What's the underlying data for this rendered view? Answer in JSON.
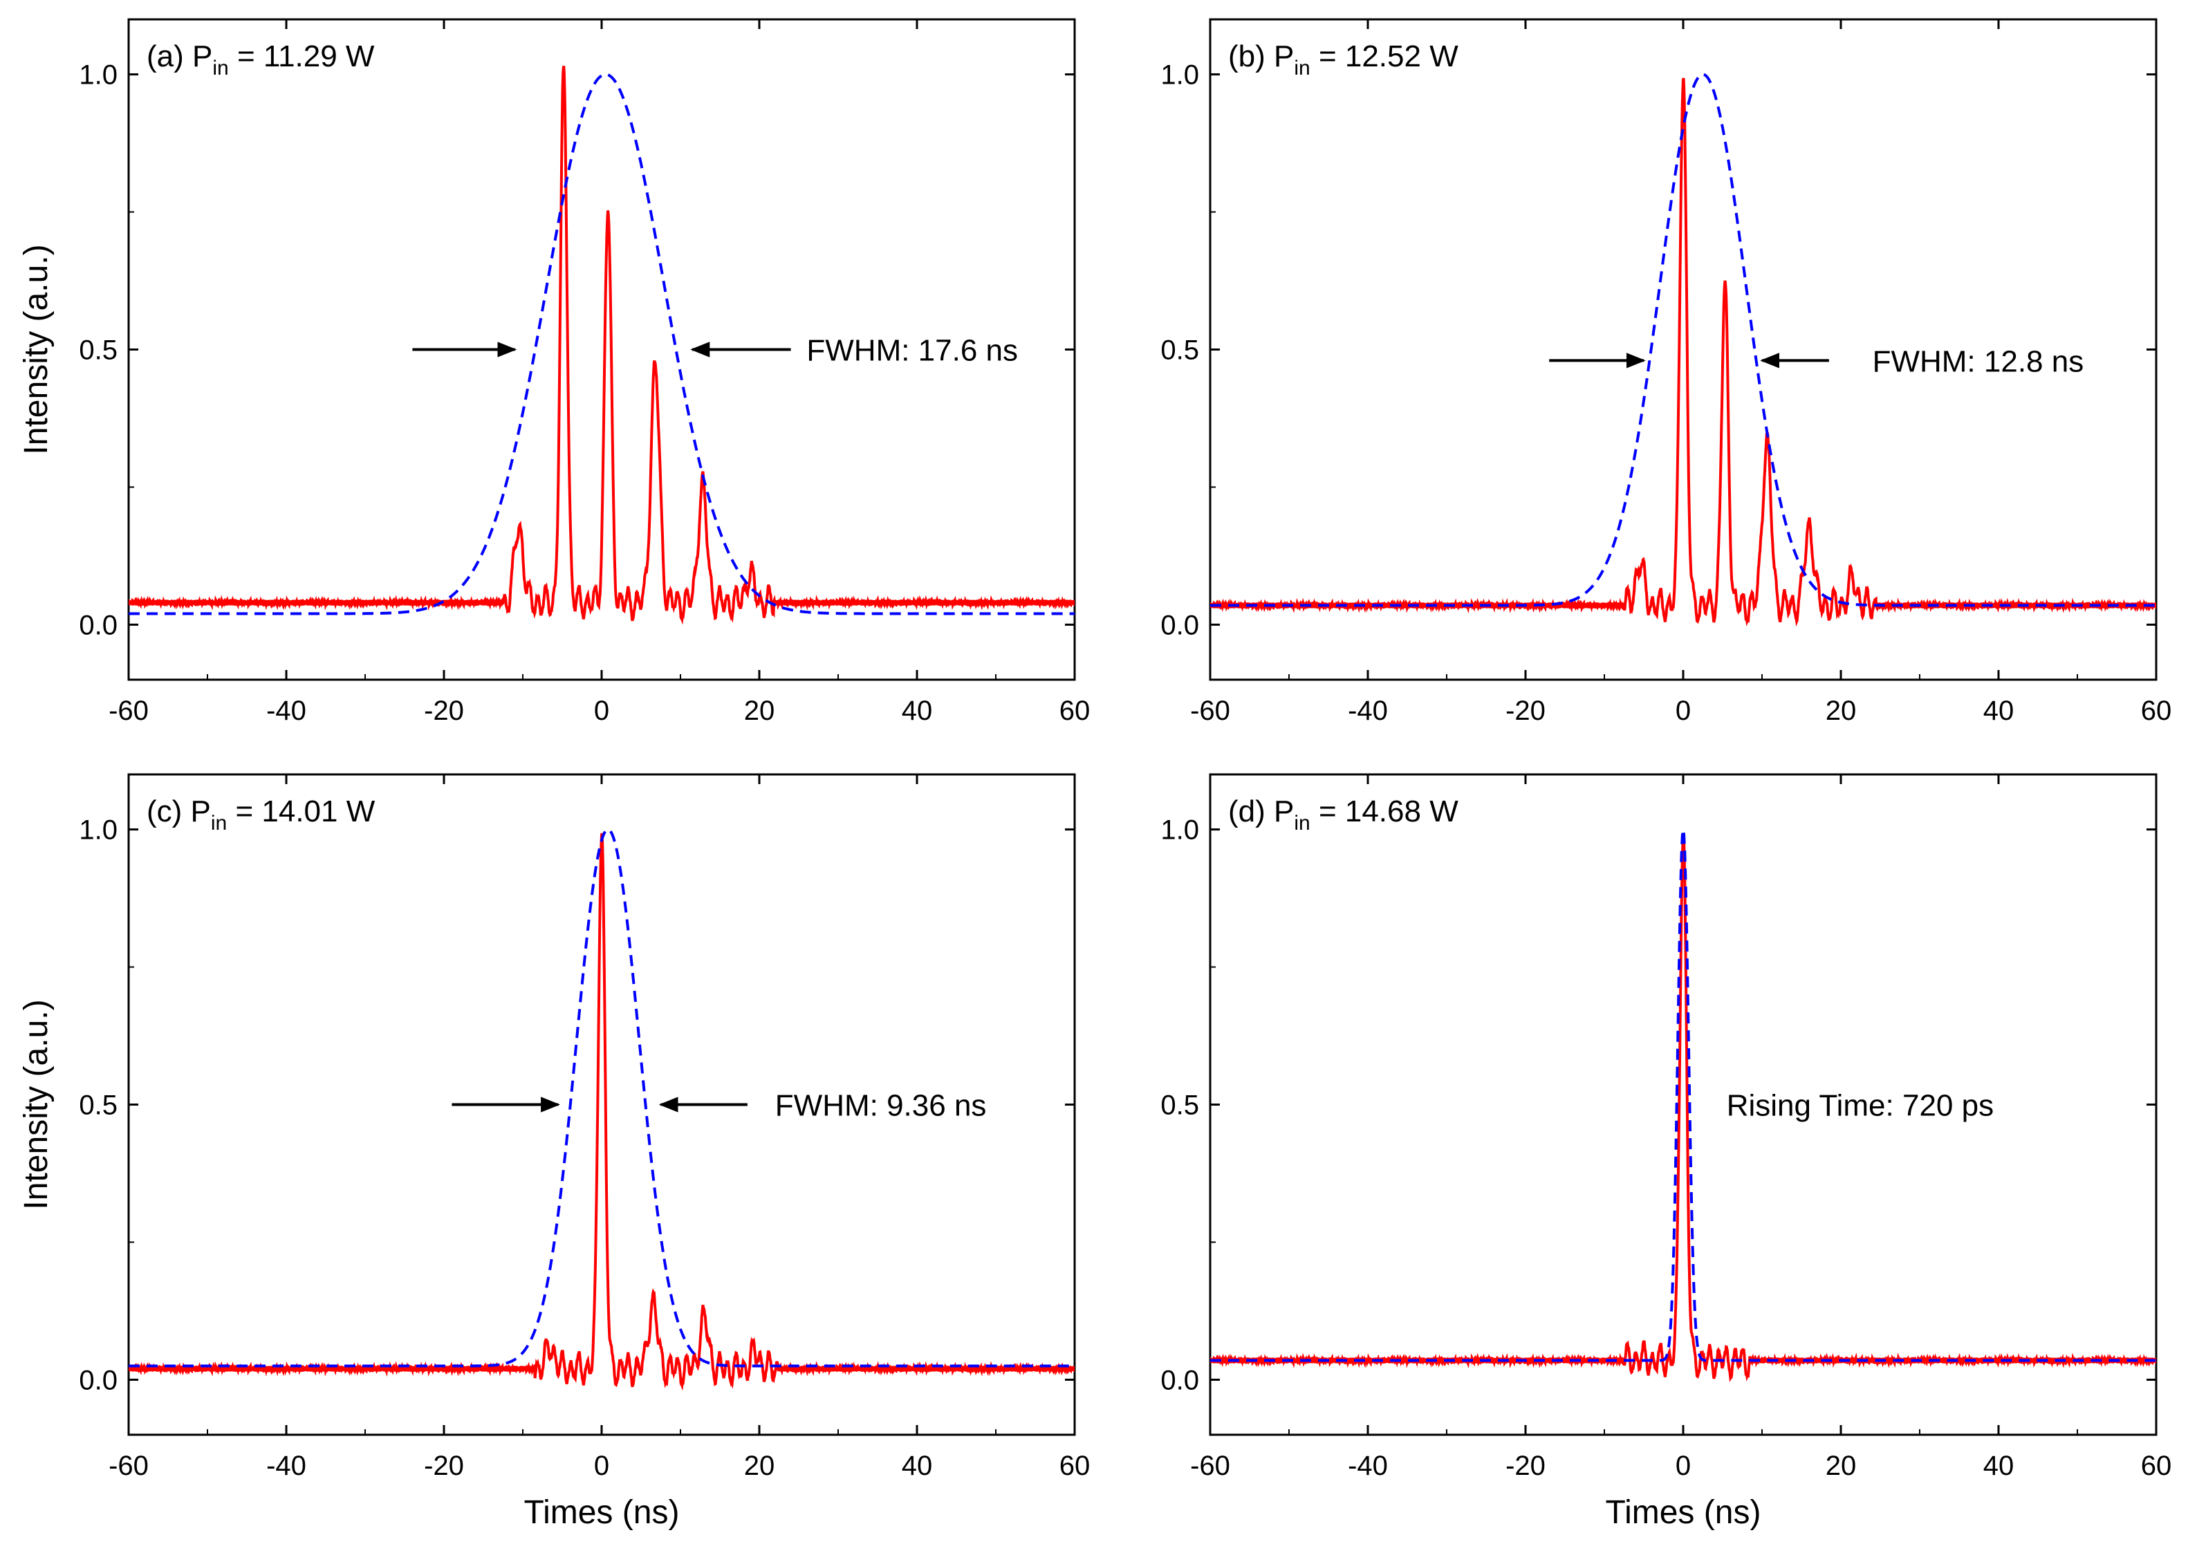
{
  "figure_title": "",
  "colors": {
    "measured": "#ff0000",
    "fit": "#0000ff",
    "axis": "#000000"
  },
  "chart_data": [
    {
      "type": "line",
      "panel": "a",
      "label_prefix": "(a) P",
      "label_sub": "in",
      "label_suffix": " = 11.29 W",
      "xlabel": "Times (ns)",
      "ylabel": "Intensity (a.u.)",
      "xlim": [
        -60,
        60
      ],
      "ylim": [
        -0.1,
        1.1
      ],
      "xticks": [
        -60,
        -40,
        -20,
        0,
        20,
        40,
        60
      ],
      "yticks": [
        0.0,
        0.5,
        1.0
      ],
      "ytick_labels": [
        "0.0",
        "0.5",
        "1.0"
      ],
      "baseline": 0.04,
      "fit": {
        "center": 0.5,
        "fwhm": 17.6,
        "base": 0.02
      },
      "peaks": [
        {
          "t": -10.5,
          "h": 0.18
        },
        {
          "t": -4.8,
          "h": 1.0
        },
        {
          "t": 0.8,
          "h": 0.76
        },
        {
          "t": 6.8,
          "h": 0.47
        },
        {
          "t": 12.8,
          "h": 0.25
        },
        {
          "t": 18.8,
          "h": 0.09
        }
      ],
      "annotation": "FWHM: 17.6 ns",
      "annotation_pos": [
        26,
        0.5
      ],
      "arrows": [
        {
          "from": [
            -24,
            0.5
          ],
          "to": [
            -11,
            0.5
          ]
        },
        {
          "from": [
            24,
            0.5
          ],
          "to": [
            11.5,
            0.5
          ]
        }
      ],
      "show_xlabel": false,
      "show_ylabel": true
    },
    {
      "type": "line",
      "panel": "b",
      "label_prefix": "(b) P",
      "label_sub": "in",
      "label_suffix": " = 12.52 W",
      "xlabel": "Times (ns)",
      "ylabel": "Intensity (a.u.)",
      "xlim": [
        -60,
        60
      ],
      "ylim": [
        -0.1,
        1.1
      ],
      "xticks": [
        -60,
        -40,
        -20,
        0,
        20,
        40,
        60
      ],
      "yticks": [
        0.0,
        0.5,
        1.0
      ],
      "ytick_labels": [
        "0.0",
        "0.5",
        "1.0"
      ],
      "baseline": 0.035,
      "fit": {
        "center": 2.5,
        "fwhm": 12.8,
        "base": 0.035
      },
      "peaks": [
        {
          "t": -5.5,
          "h": 0.11
        },
        {
          "t": 0.0,
          "h": 1.0
        },
        {
          "t": 5.3,
          "h": 0.61
        },
        {
          "t": 10.6,
          "h": 0.33
        },
        {
          "t": 16.0,
          "h": 0.18
        },
        {
          "t": 21.5,
          "h": 0.08
        }
      ],
      "annotation": "FWHM: 12.8 ns",
      "annotation_pos": [
        24,
        0.48
      ],
      "arrows": [
        {
          "from": [
            -17,
            0.48
          ],
          "to": [
            -5,
            0.48
          ]
        },
        {
          "from": [
            18.5,
            0.48
          ],
          "to": [
            10,
            0.48
          ]
        }
      ],
      "show_xlabel": false,
      "show_ylabel": false
    },
    {
      "type": "line",
      "panel": "c",
      "label_prefix": "(c) P",
      "label_sub": "in",
      "label_suffix": " = 14.01 W",
      "xlabel": "Times (ns)",
      "ylabel": "Intensity (a.u.)",
      "xlim": [
        -60,
        60
      ],
      "ylim": [
        -0.1,
        1.1
      ],
      "xticks": [
        -60,
        -40,
        -20,
        0,
        20,
        40,
        60
      ],
      "yticks": [
        0.0,
        0.5,
        1.0
      ],
      "ytick_labels": [
        "0.0",
        "0.5",
        "1.0"
      ],
      "baseline": 0.02,
      "fit": {
        "center": 0.8,
        "fwhm": 9.36,
        "base": 0.025
      },
      "peaks": [
        {
          "t": -6.5,
          "h": 0.06
        },
        {
          "t": 0.0,
          "h": 1.0
        },
        {
          "t": 6.5,
          "h": 0.14
        },
        {
          "t": 13.0,
          "h": 0.11
        },
        {
          "t": 19.5,
          "h": 0.05
        }
      ],
      "annotation": "FWHM: 9.36 ns",
      "annotation_pos": [
        22,
        0.5
      ],
      "arrows": [
        {
          "from": [
            -19,
            0.5
          ],
          "to": [
            -5.5,
            0.5
          ]
        },
        {
          "from": [
            18.5,
            0.5
          ],
          "to": [
            7.5,
            0.5
          ]
        }
      ],
      "show_xlabel": true,
      "show_ylabel": true
    },
    {
      "type": "line",
      "panel": "d",
      "label_prefix": "(d) P",
      "label_sub": "in",
      "label_suffix": " = 14.68 W",
      "xlabel": "Times (ns)",
      "ylabel": "Intensity (a.u.)",
      "xlim": [
        -60,
        60
      ],
      "ylim": [
        -0.1,
        1.1
      ],
      "xticks": [
        -60,
        -40,
        -20,
        0,
        20,
        40,
        60
      ],
      "yticks": [
        0.0,
        0.5,
        1.0
      ],
      "ytick_labels": [
        "0.0",
        "0.5",
        "1.0"
      ],
      "baseline": 0.035,
      "fit": {
        "center": 0.0,
        "fwhm": 1.6,
        "base": 0.035
      },
      "peaks": [
        {
          "t": -5.5,
          "h": 0.04
        },
        {
          "t": 0.0,
          "h": 1.0
        },
        {
          "t": 5.5,
          "h": 0.035
        }
      ],
      "annotation": "Rising Time: 720 ps",
      "annotation_pos": [
        5.5,
        0.5
      ],
      "arrows": [],
      "show_xlabel": true,
      "show_ylabel": false
    }
  ]
}
